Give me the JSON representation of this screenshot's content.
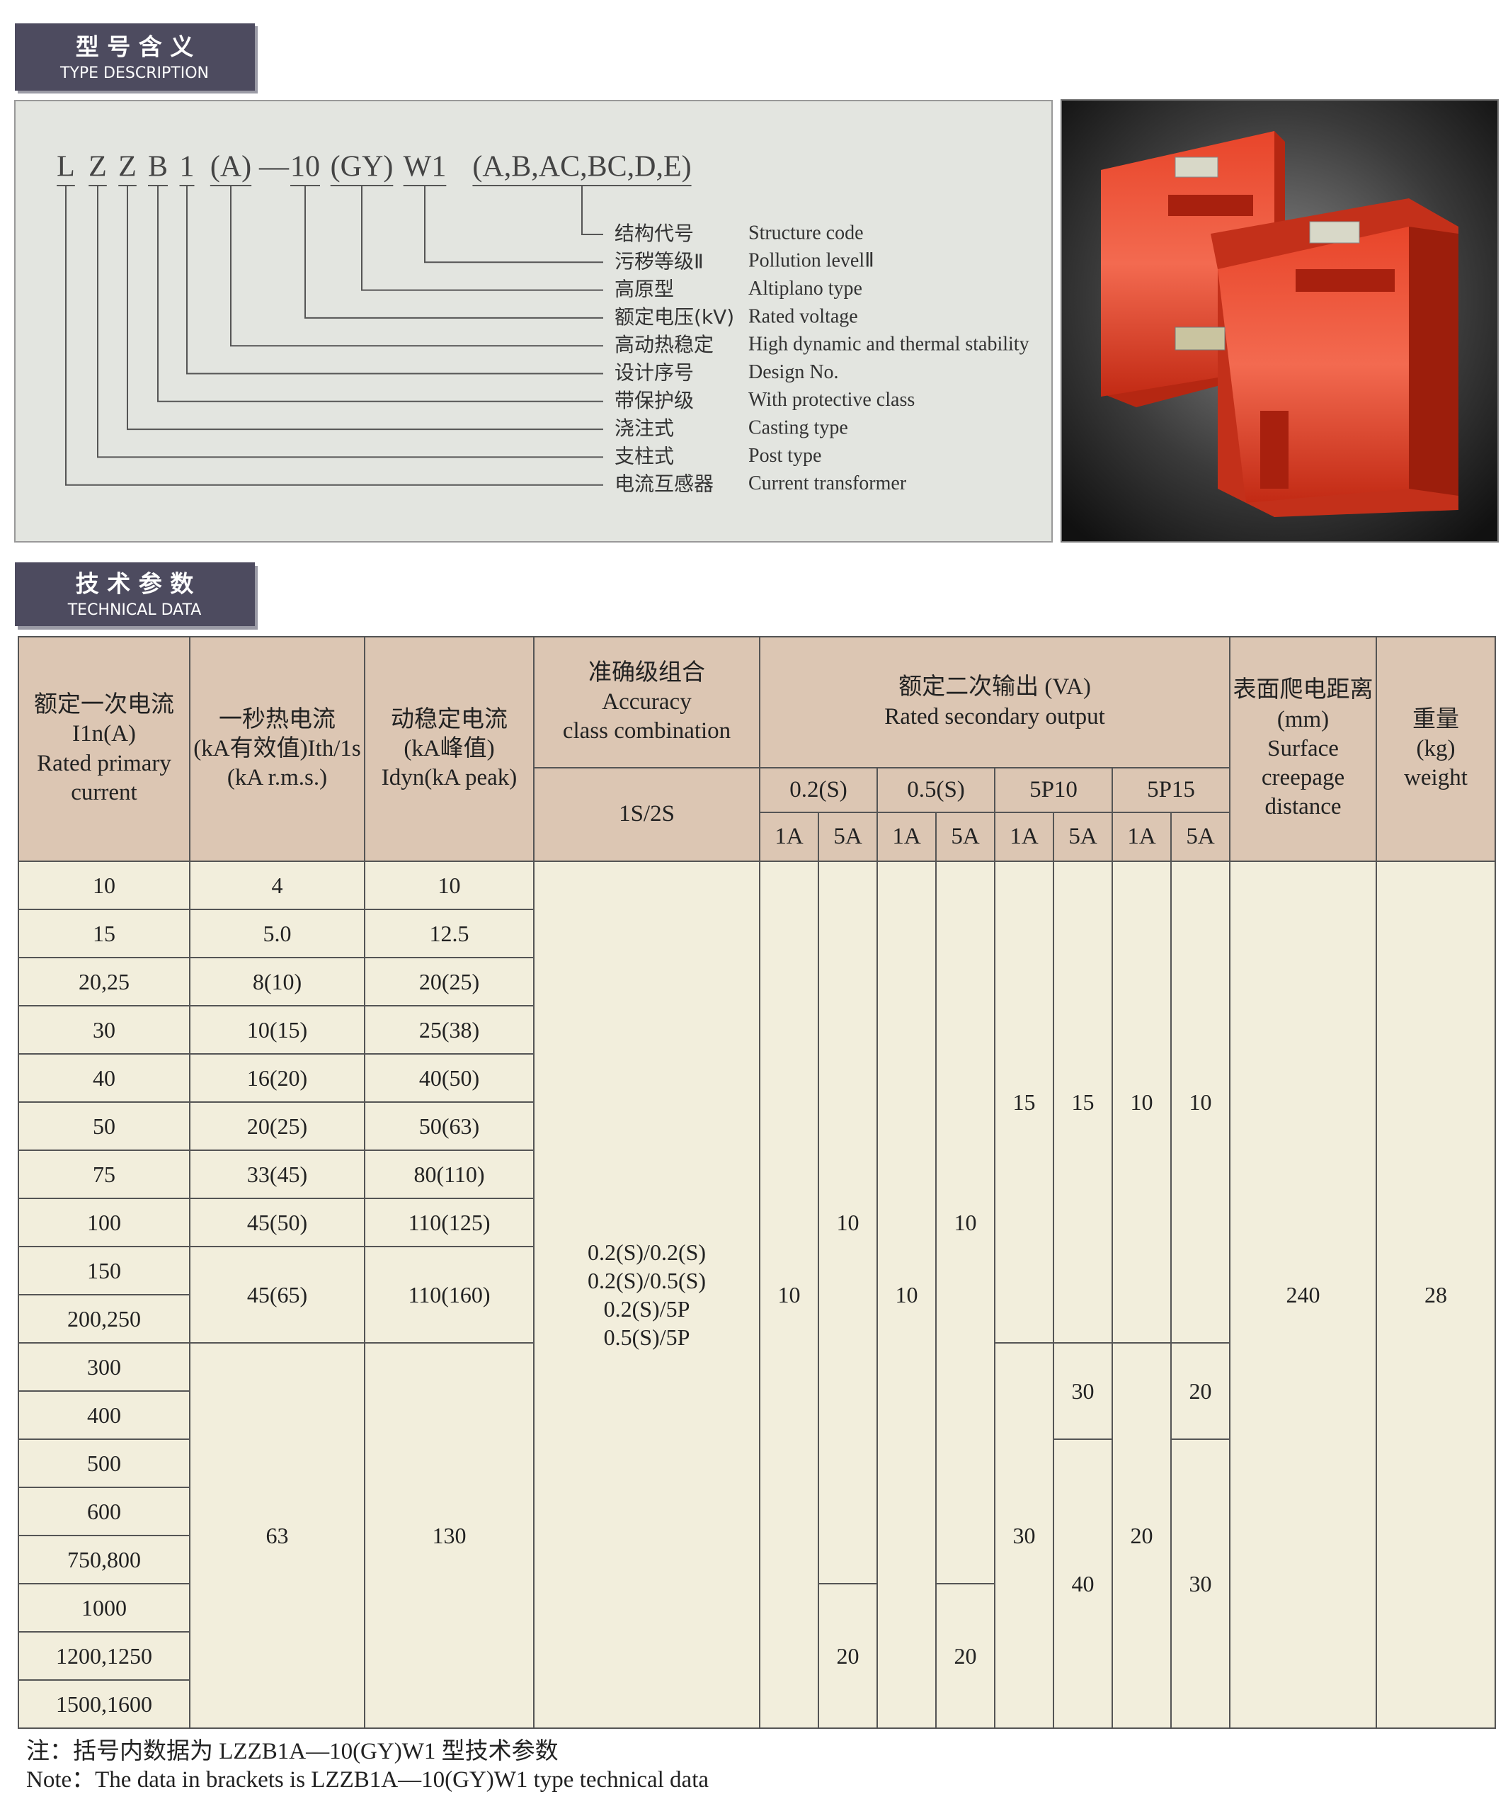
{
  "sections": {
    "type_description": {
      "title_cn": "型 号 含 义",
      "title_en": "TYPE DESCRIPTION"
    },
    "technical_data": {
      "title_cn": "技 术 参 数",
      "title_en": "TECHNICAL DATA"
    }
  },
  "model_code": {
    "parts": [
      "L",
      "Z",
      "Z",
      "B",
      "1",
      "(A)",
      "—",
      "10",
      "(GY)",
      "W1",
      "(A,B,AC,BC,D,E)"
    ]
  },
  "legend": [
    {
      "cn": "结构代号",
      "en": "Structure code"
    },
    {
      "cn": "污秽等级Ⅱ",
      "en": "Pollution levelⅡ"
    },
    {
      "cn": "高原型",
      "en": "Altiplano type"
    },
    {
      "cn": "额定电压(kV)",
      "en": "Rated voltage"
    },
    {
      "cn": "高动热稳定",
      "en": "High dynamic and thermal stability"
    },
    {
      "cn": "设计序号",
      "en": "Design No."
    },
    {
      "cn": "带保护级",
      "en": "With protective class"
    },
    {
      "cn": "浇注式",
      "en": "Casting type"
    },
    {
      "cn": "支柱式",
      "en": "Post type"
    },
    {
      "cn": "电流互感器",
      "en": "Current transformer"
    }
  ],
  "table": {
    "headers": {
      "primary_current": [
        "额定一次电流",
        "I1n(A)",
        "Rated primary",
        "current"
      ],
      "thermal": [
        "一秒热电流",
        "(kA有效值)Ith/1s",
        "(kA r.m.s.)"
      ],
      "dynamic": [
        "动稳定电流",
        "(kA峰值)",
        "Idyn(kA peak)"
      ],
      "accuracy": [
        "准确级组合",
        "Accuracy",
        "class combination"
      ],
      "accuracy_sub": "1S/2S",
      "output": [
        "额定二次输出 (VA)",
        "Rated secondary output"
      ],
      "output_classes": [
        "0.2(S)",
        "0.5(S)",
        "5P10",
        "5P15"
      ],
      "currents": [
        "1A",
        "5A",
        "1A",
        "5A",
        "1A",
        "5A",
        "1A",
        "5A"
      ],
      "creepage": [
        "表面爬电距离",
        "(mm)",
        "Surface",
        "creepage",
        "distance"
      ],
      "weight": [
        "重量",
        "(kg)",
        "weight"
      ]
    },
    "primary_current": [
      "10",
      "15",
      "20,25",
      "30",
      "40",
      "50",
      "75",
      "100",
      "150",
      "200,250",
      "300",
      "400",
      "500",
      "600",
      "750,800",
      "1000",
      "1200,1250",
      "1500,1600"
    ],
    "thermal": [
      "4",
      "5.0",
      "8(10)",
      "10(15)",
      "16(20)",
      "20(25)",
      "33(45)",
      "45(50)",
      "45(65)",
      "63"
    ],
    "dynamic": [
      "10",
      "12.5",
      "20(25)",
      "25(38)",
      "40(50)",
      "50(63)",
      "80(110)",
      "110(125)",
      "110(160)",
      "130"
    ],
    "accuracy": [
      "0.2(S)/0.2(S)",
      "0.2(S)/0.5(S)",
      "0.2(S)/5P",
      "0.5(S)/5P"
    ],
    "outputs": [
      [
        "10"
      ],
      [
        "10",
        "20"
      ],
      [
        "10"
      ],
      [
        "10",
        "20"
      ],
      [
        "15",
        "30"
      ],
      [
        "15",
        "30",
        "40"
      ],
      [
        "10",
        "20"
      ],
      [
        "10",
        "20",
        "30"
      ]
    ],
    "creepage": "240",
    "weight": "28"
  },
  "note": [
    "注：括号内数据为 LZZB1A—10(GY)W1 型技术参数",
    "Note：The data in brackets is LZZB1A—10(GY)W1 type technical data"
  ]
}
